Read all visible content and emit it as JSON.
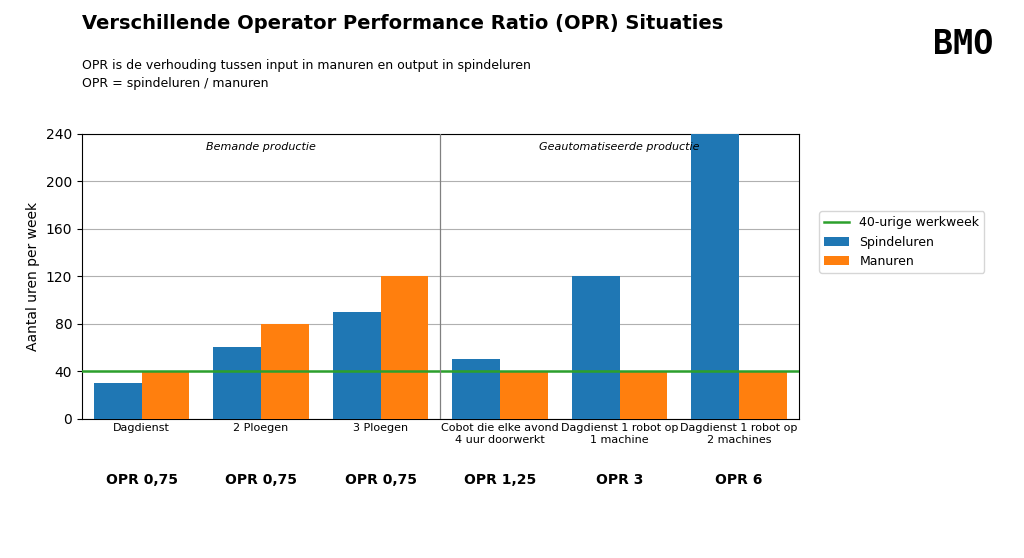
{
  "chart_data": {
    "type": "bar",
    "title": "Verschillende Operator Performance Ratio (OPR) Situaties",
    "subtitle": "OPR is de verhouding tussen input in manuren en output in spindeluren\nOPR = spindeluren / manuren",
    "y_label": "Aantal uren per week",
    "categories": [
      "Dagdienst",
      "2 Ploegen",
      "3 Ploegen",
      "Cobot die elke avond\n4 uur doorwerkt",
      "Dagdienst 1 robot op\n1 machine",
      "Dagdienst 1 robot op\n2 machines"
    ],
    "category_notes": [
      "OPR 0,75",
      "OPR 0,75",
      "OPR 0,75",
      "OPR 1,25",
      "OPR 3",
      "OPR 6"
    ],
    "series": [
      {
        "name": "Spindeluren",
        "values": [
          30,
          60,
          90,
          50,
          120,
          240
        ]
      },
      {
        "name": "Manuren",
        "values": [
          40,
          80,
          120,
          40,
          40,
          40
        ]
      }
    ],
    "reference_line": {
      "value": 40,
      "label": "40-urige werkweek"
    },
    "sections": [
      {
        "label": "Bemande productie",
        "count": 3
      },
      {
        "label": "Geautomatiseerde productie",
        "count": 3
      }
    ],
    "annotations": [
      "BMO"
    ],
    "ylim": [
      0,
      240
    ],
    "yticks": [
      0,
      40,
      80,
      120,
      160,
      200,
      240
    ],
    "grid": true,
    "legend": "upper left"
  }
}
